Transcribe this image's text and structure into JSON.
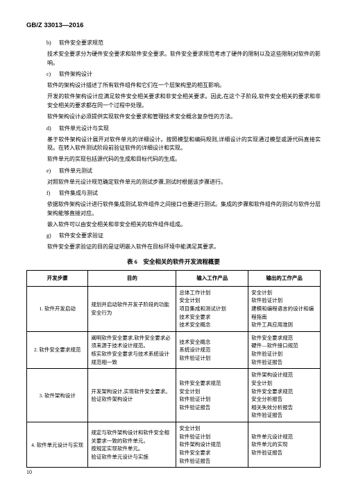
{
  "header": "GB/Z 33013—2016",
  "page_num": "10",
  "items": [
    {
      "label": "b)",
      "title": "软件安全要求规范",
      "desc": [
        "技术安全要求分为硬件安全要求和软件安全要求。软件安全要求规范考虑了硬件的限制以及这些限制对软件的影响。"
      ]
    },
    {
      "label": "c)",
      "title": "软件架构设计",
      "desc": [
        "软件的架构设计描述了所有软件组件和它们在一个层架构里的相互影响。",
        "开发的软件架构设计应满足软件安全相关要求和非安全相关要求。因此,在这个子阶段,软件安全相关的要求和非安全相关的要求都在同一个过程中处理。",
        "软件架构设计必须提供实现软件安全要求和管理技术安全概念复杂性的方法。"
      ]
    },
    {
      "label": "d)",
      "title": "软件单元设计与实现",
      "desc": [
        "基于软件架构设计展开对软件单元的详细设计。按照模型和编码规则,详细设计的实现通过模型或源代码直接实现。在转入软件测试阶段前验证软件的详细设计和实现。",
        "软件单元的实现包括源代码的生成和目标代码的生成。"
      ]
    },
    {
      "label": "e)",
      "title": "软件单元测试",
      "desc": [
        "对照软件单元设计规范确定软件单元的测试步骤,测试时根据该步骤进行。"
      ]
    },
    {
      "label": "f)",
      "title": "软件集成与测试",
      "desc": [
        "依据软件架构设计进行软件集成测试,软件组件之间接口也要进行测试。集成的步骤和软件组件的测试与软件分层架构能够直接对应。",
        "嵌入软件可以由安全相关和非安全相关的软件组件组成。"
      ]
    },
    {
      "label": "g)",
      "title": "软件安全要求验证",
      "desc": [
        "软件安全要求验证的目的是证明嵌入软件在目标环境中能满足其要求。"
      ]
    }
  ],
  "table_title": "表 6　安全相关的软件开发流程概要",
  "table": {
    "headers": [
      "开发步骤",
      "目的",
      "输入工作产品",
      "输出的工作产品"
    ],
    "rows": [
      {
        "num": "1. 软件开发启动",
        "obj": [
          "规划并启动软件开发子阶段的功能安全行为"
        ],
        "input": [
          "总体工作计划",
          "安全计划",
          "项目集成和测试计划",
          "技术安全要求",
          "技术安全概念"
        ],
        "output": [
          "安全计划",
          "软件验证计划",
          "建模和编程语言的设计和编程指南",
          "软件工具应用准则"
        ]
      },
      {
        "num": "2. 软件安全要求规范",
        "obj": [
          "阐明软件安全要求,软件安全要求必须来源于技术设计规范。",
          "核实软件安全要求与技术系统设计规范相一致"
        ],
        "input": [
          "技术安全概念",
          "系统设计规范",
          "软件验证计划"
        ],
        "output": [
          "软件安全要求规范",
          "硬件—软件接口规范",
          "软件验证计划",
          "软件验证报告"
        ]
      },
      {
        "num": "3. 软件架构设计",
        "obj": [
          "开发架构设计,实现软件安全要求。",
          "验证软件架构设计"
        ],
        "input": [
          "软件安全要求规范",
          "安全计划",
          "软件验证计划",
          "软件验证报告"
        ],
        "output": [
          "软件架构设计规范",
          "安全计划",
          "软件安全要求规范",
          "安全分析报告",
          "相关失效分析报告",
          "软件验证报告"
        ]
      },
      {
        "num": "4. 软件单元设计与实现",
        "obj": [
          "规定与软件架构设计和软件安全相关要求一致的软件单元。",
          "按规定实现软件单元。",
          "验证软件单元设计与实施"
        ],
        "input": [
          "安全计划",
          "软件验证计划",
          "软件架构设计规范",
          "软件安全要求",
          "软件验证报告"
        ],
        "output": [
          "软件单元设计规范",
          "软件单元的实现",
          "软件验证报告"
        ]
      }
    ]
  }
}
